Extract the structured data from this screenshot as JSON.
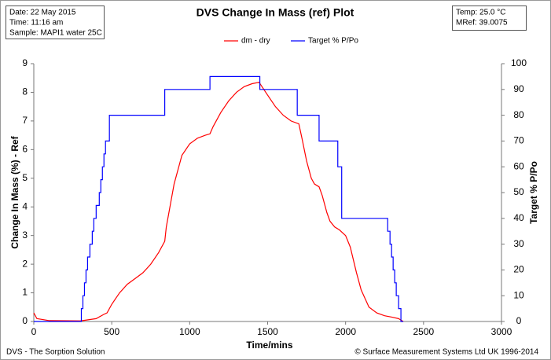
{
  "chart_data": {
    "type": "line",
    "title": "DVS Change In Mass (ref) Plot",
    "xlabel": "Time/mins",
    "ylabel": "Change In Mass (%) - Ref",
    "y2label": "Target % P/Po",
    "info_left": [
      "Date:  22 May 2015",
      "Time:  11:16 am",
      "Sample:  MAPI1  water 25C"
    ],
    "info_right": [
      "Temp:  25.0 °C",
      "MRef:  39.0075"
    ],
    "footer_left": "DVS - The Sorption Solution",
    "footer_right": "© Surface Measurement Systems Ltd UK 1996-2014",
    "xlim": [
      0,
      3000
    ],
    "xticks": [
      0,
      500,
      1000,
      1500,
      2000,
      2500,
      3000
    ],
    "ylim": [
      0,
      9
    ],
    "yticks": [
      0,
      1,
      2,
      3,
      4,
      5,
      6,
      7,
      8,
      9
    ],
    "y2lim": [
      0,
      100
    ],
    "y2ticks": [
      0,
      10,
      20,
      30,
      40,
      50,
      60,
      70,
      80,
      90,
      100
    ],
    "legend": "top",
    "series": [
      {
        "name": "dm - dry",
        "color": "#ff0000",
        "x": [
          0,
          20,
          100,
          300,
          400,
          450,
          470,
          500,
          550,
          600,
          650,
          700,
          750,
          800,
          840,
          850,
          900,
          950,
          1000,
          1050,
          1100,
          1130,
          1150,
          1200,
          1250,
          1300,
          1350,
          1400,
          1445,
          1500,
          1550,
          1600,
          1650,
          1700,
          1720,
          1750,
          1780,
          1800,
          1830,
          1850,
          1880,
          1900,
          1930,
          1960,
          2000,
          2030,
          2070,
          2100,
          2150,
          2200,
          2250,
          2300,
          2340,
          2370
        ],
        "values": [
          0.3,
          0.1,
          0.03,
          0.02,
          0.1,
          0.25,
          0.3,
          0.6,
          1.0,
          1.3,
          1.5,
          1.7,
          2.0,
          2.4,
          2.8,
          3.3,
          4.8,
          5.8,
          6.2,
          6.4,
          6.5,
          6.55,
          6.8,
          7.3,
          7.7,
          8.0,
          8.2,
          8.3,
          8.35,
          7.9,
          7.5,
          7.2,
          7.0,
          6.9,
          6.4,
          5.6,
          5.0,
          4.8,
          4.7,
          4.4,
          3.8,
          3.5,
          3.3,
          3.2,
          3.0,
          2.6,
          1.7,
          1.1,
          0.5,
          0.3,
          0.2,
          0.15,
          0.1,
          0.0
        ]
      },
      {
        "name": "Target % P/Po",
        "color": "#0000ff",
        "axis": "y2",
        "x": [
          0,
          305,
          305,
          315,
          315,
          325,
          325,
          335,
          335,
          345,
          345,
          360,
          360,
          375,
          375,
          385,
          385,
          400,
          400,
          420,
          420,
          430,
          430,
          440,
          440,
          450,
          450,
          460,
          460,
          485,
          485,
          840,
          840,
          1130,
          1130,
          1450,
          1450,
          1690,
          1690,
          1830,
          1830,
          1950,
          1950,
          1975,
          1975,
          2270,
          2270,
          2285,
          2285,
          2295,
          2295,
          2305,
          2305,
          2315,
          2315,
          2325,
          2325,
          2340,
          2340,
          2355,
          2355,
          2370
        ],
        "values": [
          0,
          0,
          5,
          5,
          10,
          10,
          15,
          15,
          20,
          20,
          25,
          25,
          30,
          30,
          35,
          35,
          40,
          40,
          45,
          45,
          50,
          50,
          55,
          55,
          60,
          60,
          65,
          65,
          70,
          70,
          80,
          80,
          90,
          90,
          95,
          95,
          90,
          90,
          80,
          80,
          70,
          70,
          60,
          60,
          40,
          40,
          35,
          35,
          30,
          30,
          25,
          25,
          20,
          20,
          15,
          15,
          10,
          10,
          5,
          5,
          0,
          0
        ]
      }
    ]
  }
}
